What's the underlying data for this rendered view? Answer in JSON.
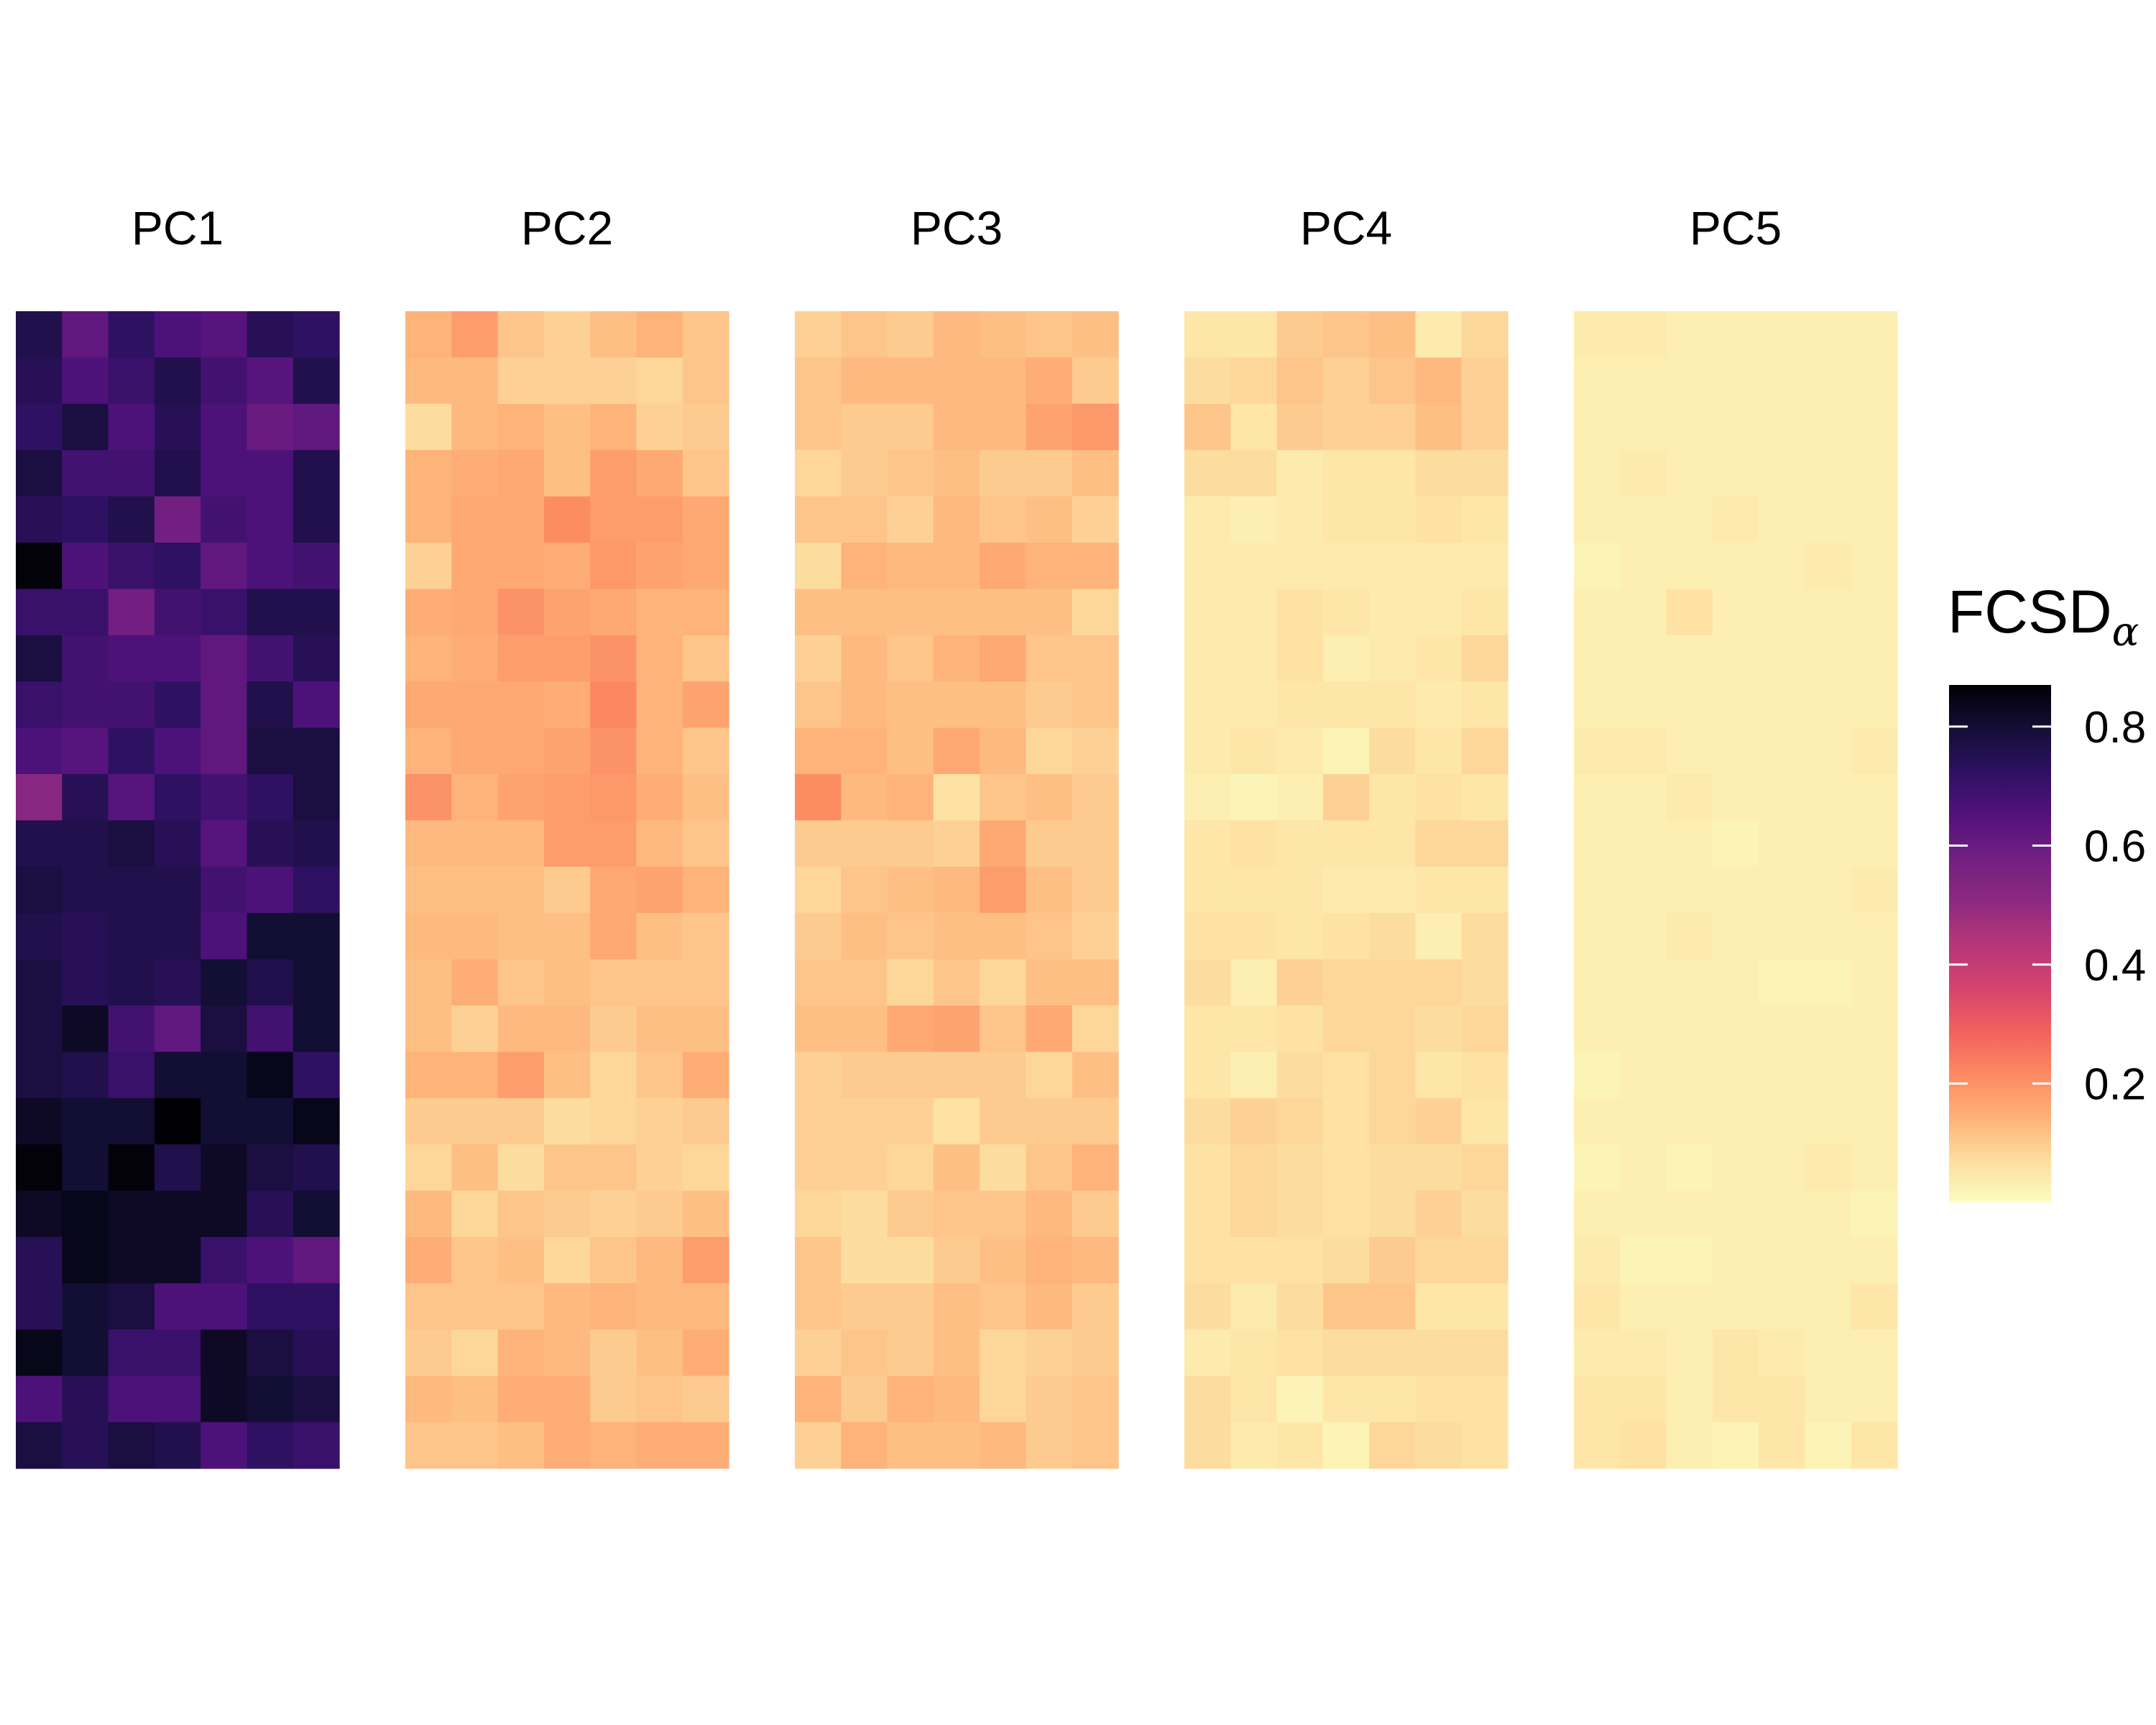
{
  "chart_data": {
    "type": "heatmap",
    "legend": {
      "title": "FCSD",
      "subscript": "α",
      "placement": "right",
      "ticks": [
        0.2,
        0.4,
        0.6,
        0.8
      ],
      "tick_labels": [
        "0.2",
        "0.4",
        "0.6",
        "0.8"
      ],
      "range": [
        0.0,
        0.87
      ]
    },
    "colorscale": "magma-reversed",
    "colors": [
      "#FCFDBF",
      "#FDDC9E",
      "#FEB078",
      "#FC8961",
      "#F1605D",
      "#D3436E",
      "#B63679",
      "#8C2981",
      "#721F81",
      "#51127C",
      "#2D1160",
      "#140E36",
      "#000004"
    ],
    "ncol": 7,
    "nrow": 25,
    "panels": [
      {
        "label": "PC1",
        "values": [
          [
            0.76,
            0.62,
            0.72,
            0.66,
            0.64,
            0.74,
            0.72
          ],
          [
            0.74,
            0.66,
            0.7,
            0.76,
            0.68,
            0.64,
            0.76
          ],
          [
            0.72,
            0.78,
            0.66,
            0.74,
            0.66,
            0.6,
            0.62
          ],
          [
            0.78,
            0.68,
            0.68,
            0.76,
            0.66,
            0.66,
            0.76
          ],
          [
            0.74,
            0.72,
            0.76,
            0.58,
            0.68,
            0.66,
            0.76
          ],
          [
            0.86,
            0.66,
            0.7,
            0.72,
            0.62,
            0.66,
            0.68
          ],
          [
            0.7,
            0.7,
            0.58,
            0.68,
            0.7,
            0.76,
            0.76
          ],
          [
            0.78,
            0.68,
            0.66,
            0.66,
            0.62,
            0.68,
            0.74
          ],
          [
            0.7,
            0.68,
            0.68,
            0.72,
            0.62,
            0.76,
            0.66
          ],
          [
            0.66,
            0.64,
            0.72,
            0.66,
            0.62,
            0.78,
            0.78
          ],
          [
            0.52,
            0.74,
            0.64,
            0.72,
            0.68,
            0.72,
            0.78
          ],
          [
            0.76,
            0.76,
            0.78,
            0.74,
            0.64,
            0.74,
            0.76
          ],
          [
            0.78,
            0.76,
            0.76,
            0.76,
            0.68,
            0.66,
            0.72
          ],
          [
            0.76,
            0.74,
            0.76,
            0.76,
            0.66,
            0.8,
            0.8
          ],
          [
            0.78,
            0.74,
            0.76,
            0.74,
            0.8,
            0.76,
            0.8
          ],
          [
            0.78,
            0.82,
            0.68,
            0.62,
            0.78,
            0.68,
            0.8
          ],
          [
            0.78,
            0.76,
            0.7,
            0.8,
            0.8,
            0.84,
            0.72
          ],
          [
            0.82,
            0.8,
            0.8,
            0.88,
            0.8,
            0.8,
            0.84
          ],
          [
            0.86,
            0.8,
            0.86,
            0.76,
            0.82,
            0.78,
            0.76
          ],
          [
            0.82,
            0.84,
            0.82,
            0.82,
            0.82,
            0.74,
            0.8
          ],
          [
            0.74,
            0.84,
            0.82,
            0.82,
            0.7,
            0.66,
            0.62
          ],
          [
            0.74,
            0.8,
            0.78,
            0.66,
            0.66,
            0.72,
            0.72
          ],
          [
            0.84,
            0.8,
            0.7,
            0.7,
            0.82,
            0.78,
            0.74
          ],
          [
            0.66,
            0.74,
            0.66,
            0.66,
            0.82,
            0.8,
            0.78
          ],
          [
            0.78,
            0.74,
            0.78,
            0.76,
            0.66,
            0.72,
            0.7
          ]
        ]
      },
      {
        "label": "PC2",
        "values": [
          [
            0.14,
            0.18,
            0.11,
            0.09,
            0.12,
            0.14,
            0.11
          ],
          [
            0.13,
            0.13,
            0.09,
            0.09,
            0.09,
            0.08,
            0.11
          ],
          [
            0.07,
            0.13,
            0.14,
            0.12,
            0.14,
            0.09,
            0.1
          ],
          [
            0.14,
            0.15,
            0.16,
            0.12,
            0.18,
            0.16,
            0.11
          ],
          [
            0.14,
            0.16,
            0.16,
            0.21,
            0.18,
            0.18,
            0.16
          ],
          [
            0.09,
            0.16,
            0.16,
            0.15,
            0.19,
            0.17,
            0.16
          ],
          [
            0.15,
            0.16,
            0.2,
            0.17,
            0.16,
            0.14,
            0.14
          ],
          [
            0.14,
            0.15,
            0.18,
            0.18,
            0.2,
            0.14,
            0.11
          ],
          [
            0.16,
            0.16,
            0.16,
            0.15,
            0.22,
            0.14,
            0.17
          ],
          [
            0.14,
            0.16,
            0.16,
            0.17,
            0.2,
            0.14,
            0.11
          ],
          [
            0.2,
            0.14,
            0.17,
            0.18,
            0.19,
            0.15,
            0.12
          ],
          [
            0.13,
            0.13,
            0.13,
            0.18,
            0.18,
            0.13,
            0.11
          ],
          [
            0.12,
            0.12,
            0.12,
            0.1,
            0.16,
            0.17,
            0.14
          ],
          [
            0.13,
            0.13,
            0.12,
            0.12,
            0.16,
            0.12,
            0.11
          ],
          [
            0.12,
            0.15,
            0.11,
            0.12,
            0.11,
            0.11,
            0.11
          ],
          [
            0.12,
            0.09,
            0.13,
            0.13,
            0.1,
            0.12,
            0.12
          ],
          [
            0.14,
            0.14,
            0.18,
            0.12,
            0.08,
            0.11,
            0.15
          ],
          [
            0.1,
            0.1,
            0.1,
            0.07,
            0.08,
            0.09,
            0.1
          ],
          [
            0.08,
            0.12,
            0.07,
            0.11,
            0.11,
            0.09,
            0.08
          ],
          [
            0.13,
            0.08,
            0.11,
            0.1,
            0.09,
            0.1,
            0.12
          ],
          [
            0.15,
            0.11,
            0.12,
            0.08,
            0.11,
            0.13,
            0.18
          ],
          [
            0.11,
            0.11,
            0.11,
            0.13,
            0.14,
            0.13,
            0.13
          ],
          [
            0.1,
            0.08,
            0.14,
            0.13,
            0.1,
            0.12,
            0.15
          ],
          [
            0.13,
            0.12,
            0.15,
            0.15,
            0.1,
            0.11,
            0.1
          ],
          [
            0.11,
            0.11,
            0.12,
            0.15,
            0.14,
            0.15,
            0.15
          ]
        ]
      },
      {
        "label": "PC3",
        "values": [
          [
            0.09,
            0.11,
            0.1,
            0.13,
            0.12,
            0.11,
            0.12
          ],
          [
            0.11,
            0.13,
            0.13,
            0.13,
            0.13,
            0.15,
            0.1
          ],
          [
            0.11,
            0.1,
            0.1,
            0.13,
            0.13,
            0.17,
            0.19
          ],
          [
            0.08,
            0.1,
            0.11,
            0.12,
            0.1,
            0.1,
            0.12
          ],
          [
            0.11,
            0.11,
            0.09,
            0.13,
            0.11,
            0.12,
            0.09
          ],
          [
            0.07,
            0.14,
            0.13,
            0.13,
            0.16,
            0.14,
            0.14
          ],
          [
            0.12,
            0.12,
            0.12,
            0.12,
            0.12,
            0.12,
            0.08
          ],
          [
            0.09,
            0.13,
            0.11,
            0.14,
            0.16,
            0.11,
            0.11
          ],
          [
            0.11,
            0.13,
            0.12,
            0.12,
            0.12,
            0.1,
            0.11
          ],
          [
            0.14,
            0.14,
            0.12,
            0.16,
            0.13,
            0.08,
            0.09
          ],
          [
            0.21,
            0.13,
            0.14,
            0.06,
            0.11,
            0.12,
            0.1
          ],
          [
            0.1,
            0.1,
            0.1,
            0.09,
            0.16,
            0.1,
            0.1
          ],
          [
            0.08,
            0.11,
            0.12,
            0.13,
            0.18,
            0.12,
            0.1
          ],
          [
            0.1,
            0.12,
            0.11,
            0.12,
            0.12,
            0.11,
            0.09
          ],
          [
            0.11,
            0.11,
            0.08,
            0.11,
            0.08,
            0.12,
            0.12
          ],
          [
            0.12,
            0.12,
            0.16,
            0.17,
            0.11,
            0.16,
            0.08
          ],
          [
            0.09,
            0.1,
            0.1,
            0.1,
            0.1,
            0.08,
            0.12
          ],
          [
            0.09,
            0.09,
            0.09,
            0.06,
            0.1,
            0.1,
            0.1
          ],
          [
            0.09,
            0.09,
            0.08,
            0.12,
            0.07,
            0.11,
            0.14
          ],
          [
            0.08,
            0.07,
            0.1,
            0.11,
            0.11,
            0.13,
            0.1
          ],
          [
            0.11,
            0.07,
            0.07,
            0.1,
            0.12,
            0.14,
            0.13
          ],
          [
            0.11,
            0.1,
            0.1,
            0.12,
            0.11,
            0.13,
            0.1
          ],
          [
            0.09,
            0.11,
            0.1,
            0.12,
            0.08,
            0.09,
            0.1
          ],
          [
            0.14,
            0.1,
            0.14,
            0.13,
            0.08,
            0.1,
            0.11
          ],
          [
            0.09,
            0.14,
            0.12,
            0.12,
            0.13,
            0.1,
            0.11
          ]
        ]
      },
      {
        "label": "PC4",
        "values": [
          [
            0.05,
            0.05,
            0.1,
            0.11,
            0.12,
            0.04,
            0.08
          ],
          [
            0.07,
            0.08,
            0.11,
            0.09,
            0.11,
            0.13,
            0.09
          ],
          [
            0.11,
            0.05,
            0.1,
            0.09,
            0.09,
            0.12,
            0.09
          ],
          [
            0.07,
            0.07,
            0.04,
            0.05,
            0.05,
            0.07,
            0.07
          ],
          [
            0.04,
            0.03,
            0.04,
            0.05,
            0.05,
            0.06,
            0.05
          ],
          [
            0.04,
            0.04,
            0.04,
            0.04,
            0.04,
            0.04,
            0.04
          ],
          [
            0.04,
            0.04,
            0.06,
            0.05,
            0.04,
            0.04,
            0.05
          ],
          [
            0.04,
            0.04,
            0.06,
            0.03,
            0.04,
            0.05,
            0.08
          ],
          [
            0.04,
            0.04,
            0.05,
            0.05,
            0.05,
            0.04,
            0.05
          ],
          [
            0.04,
            0.05,
            0.04,
            0.02,
            0.07,
            0.05,
            0.08
          ],
          [
            0.03,
            0.02,
            0.03,
            0.09,
            0.05,
            0.06,
            0.05
          ],
          [
            0.05,
            0.06,
            0.05,
            0.05,
            0.05,
            0.08,
            0.08
          ],
          [
            0.05,
            0.05,
            0.05,
            0.04,
            0.04,
            0.05,
            0.05
          ],
          [
            0.06,
            0.06,
            0.05,
            0.06,
            0.07,
            0.03,
            0.07
          ],
          [
            0.07,
            0.03,
            0.09,
            0.08,
            0.08,
            0.08,
            0.07
          ],
          [
            0.05,
            0.05,
            0.06,
            0.08,
            0.08,
            0.07,
            0.08
          ],
          [
            0.05,
            0.03,
            0.07,
            0.06,
            0.08,
            0.05,
            0.06
          ],
          [
            0.07,
            0.09,
            0.08,
            0.06,
            0.08,
            0.09,
            0.05
          ],
          [
            0.06,
            0.08,
            0.07,
            0.06,
            0.07,
            0.07,
            0.08
          ],
          [
            0.06,
            0.08,
            0.07,
            0.06,
            0.07,
            0.09,
            0.07
          ],
          [
            0.06,
            0.06,
            0.06,
            0.07,
            0.1,
            0.08,
            0.08
          ],
          [
            0.07,
            0.04,
            0.07,
            0.11,
            0.11,
            0.05,
            0.05
          ],
          [
            0.04,
            0.05,
            0.06,
            0.07,
            0.07,
            0.07,
            0.07
          ],
          [
            0.07,
            0.05,
            0.02,
            0.05,
            0.05,
            0.06,
            0.06
          ],
          [
            0.07,
            0.04,
            0.05,
            0.02,
            0.08,
            0.07,
            0.06
          ]
        ]
      },
      {
        "label": "PC5",
        "values": [
          [
            0.04,
            0.04,
            0.03,
            0.03,
            0.03,
            0.03,
            0.03
          ],
          [
            0.03,
            0.03,
            0.03,
            0.03,
            0.03,
            0.03,
            0.03
          ],
          [
            0.03,
            0.03,
            0.03,
            0.03,
            0.03,
            0.03,
            0.03
          ],
          [
            0.03,
            0.04,
            0.03,
            0.03,
            0.03,
            0.03,
            0.03
          ],
          [
            0.03,
            0.03,
            0.03,
            0.04,
            0.03,
            0.03,
            0.03
          ],
          [
            0.02,
            0.03,
            0.03,
            0.03,
            0.03,
            0.04,
            0.03
          ],
          [
            0.03,
            0.03,
            0.06,
            0.03,
            0.03,
            0.03,
            0.03
          ],
          [
            0.03,
            0.03,
            0.03,
            0.03,
            0.03,
            0.03,
            0.03
          ],
          [
            0.03,
            0.03,
            0.03,
            0.03,
            0.03,
            0.03,
            0.03
          ],
          [
            0.04,
            0.04,
            0.03,
            0.03,
            0.03,
            0.03,
            0.04
          ],
          [
            0.03,
            0.03,
            0.04,
            0.03,
            0.03,
            0.03,
            0.03
          ],
          [
            0.03,
            0.03,
            0.03,
            0.02,
            0.03,
            0.03,
            0.03
          ],
          [
            0.03,
            0.03,
            0.03,
            0.03,
            0.03,
            0.03,
            0.04
          ],
          [
            0.03,
            0.03,
            0.04,
            0.03,
            0.03,
            0.03,
            0.03
          ],
          [
            0.03,
            0.03,
            0.03,
            0.03,
            0.02,
            0.02,
            0.03
          ],
          [
            0.03,
            0.03,
            0.03,
            0.03,
            0.03,
            0.03,
            0.03
          ],
          [
            0.02,
            0.03,
            0.03,
            0.03,
            0.03,
            0.03,
            0.03
          ],
          [
            0.03,
            0.03,
            0.03,
            0.03,
            0.03,
            0.03,
            0.03
          ],
          [
            0.02,
            0.03,
            0.02,
            0.03,
            0.03,
            0.04,
            0.03
          ],
          [
            0.03,
            0.03,
            0.03,
            0.03,
            0.03,
            0.03,
            0.02
          ],
          [
            0.04,
            0.02,
            0.02,
            0.03,
            0.03,
            0.03,
            0.03
          ],
          [
            0.05,
            0.03,
            0.03,
            0.03,
            0.03,
            0.03,
            0.05
          ],
          [
            0.04,
            0.04,
            0.03,
            0.05,
            0.04,
            0.03,
            0.03
          ],
          [
            0.05,
            0.05,
            0.03,
            0.05,
            0.05,
            0.03,
            0.03
          ],
          [
            0.05,
            0.06,
            0.03,
            0.02,
            0.05,
            0.02,
            0.05
          ]
        ]
      }
    ]
  }
}
